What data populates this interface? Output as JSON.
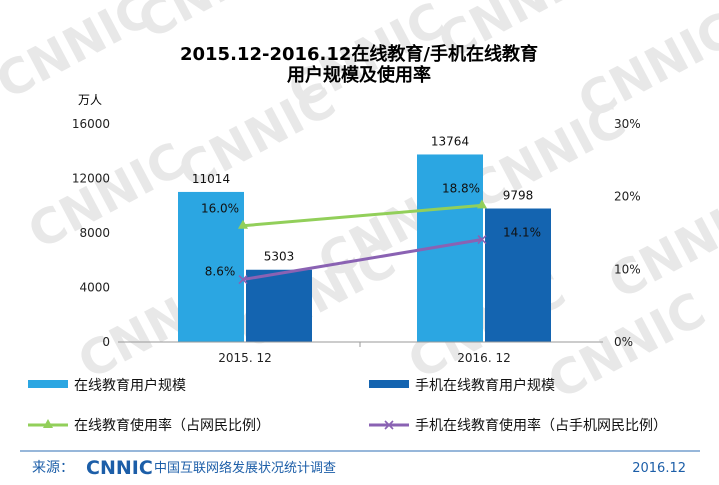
{
  "header": {
    "title_line1": "2015.12-2016.12在线教育/手机在线教育",
    "title_line2": "用户规模及使用率"
  },
  "watermark": "CNNIC",
  "chart_data": {
    "type": "bar",
    "categories": [
      "2015. 12",
      "2016. 12"
    ],
    "left_axis": {
      "unit": "万人",
      "ylim": [
        0,
        16000
      ],
      "ticks": [
        "0",
        "4000",
        "8000",
        "12000",
        "16000"
      ]
    },
    "right_axis": {
      "ylim": [
        0,
        30
      ],
      "ticks": [
        "0%",
        "10%",
        "20%",
        "30%"
      ]
    },
    "bar_series": [
      {
        "name": "在线教育用户规模",
        "values": [
          11014,
          13764
        ],
        "labels": [
          "11014",
          "13764"
        ],
        "color": "#2ba6e2"
      },
      {
        "name": "手机在线教育用户规模",
        "values": [
          5303,
          9798
        ],
        "labels": [
          "5303",
          "9798"
        ],
        "color": "#1464b0"
      }
    ],
    "line_series": [
      {
        "name": "在线教育使用率（占网民比例）",
        "values": [
          16.0,
          18.8
        ],
        "labels": [
          "16.0%",
          "18.8%"
        ],
        "color": "#92cf5a",
        "marker": "triangle"
      },
      {
        "name": "手机在线教育使用率（占手机网民比例）",
        "values": [
          8.6,
          14.1
        ],
        "labels": [
          "8.6%",
          "14.1%"
        ],
        "color": "#8a62b3",
        "marker": "x"
      }
    ],
    "grid": false,
    "legend_position": "bottom"
  },
  "footer": {
    "source_prefix": "来源：",
    "source_logo": "CNNIC",
    "source_org": "中国互联网络发展状况统计调查",
    "date": "2016.12"
  }
}
